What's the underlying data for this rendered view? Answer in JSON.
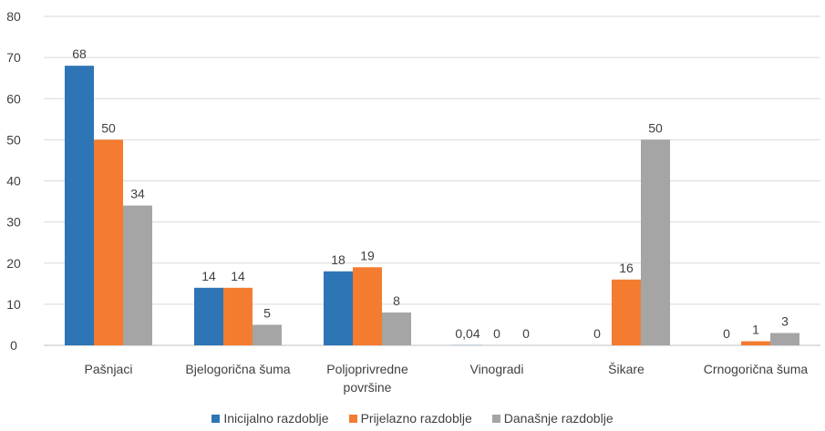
{
  "chart_data": {
    "type": "bar",
    "categories": [
      "Pašnjaci",
      "Bjelogorična šuma",
      "Poljoprivredne površine",
      "Vinogradi",
      "Šikare",
      "Crnogorična šuma"
    ],
    "category_lines": [
      [
        "Pašnjaci"
      ],
      [
        "Bjelogorična šuma"
      ],
      [
        "Poljoprivredne",
        "površine"
      ],
      [
        "Vinogradi"
      ],
      [
        "Šikare"
      ],
      [
        "Crnogorična šuma"
      ]
    ],
    "series": [
      {
        "name": "Inicijalno razdoblje",
        "values": [
          68,
          14,
          18,
          0.04,
          0,
          0
        ],
        "labels": [
          "68",
          "14",
          "18",
          "0,04",
          "0",
          "0"
        ],
        "color": "#2E75B6"
      },
      {
        "name": "Prijelazno razdoblje",
        "values": [
          50,
          14,
          19,
          0,
          16,
          1
        ],
        "labels": [
          "50",
          "14",
          "19",
          "0",
          "16",
          "1"
        ],
        "color": "#F47C30"
      },
      {
        "name": "Današnje razdoblje",
        "values": [
          34,
          5,
          8,
          0,
          50,
          3
        ],
        "labels": [
          "34",
          "5",
          "8",
          "0",
          "50",
          "3"
        ],
        "color": "#A5A5A5"
      }
    ],
    "ylim": [
      0,
      80
    ],
    "yticks": [
      0,
      10,
      20,
      30,
      40,
      50,
      60,
      70,
      80
    ],
    "grid": true,
    "legend_position": "bottom"
  }
}
